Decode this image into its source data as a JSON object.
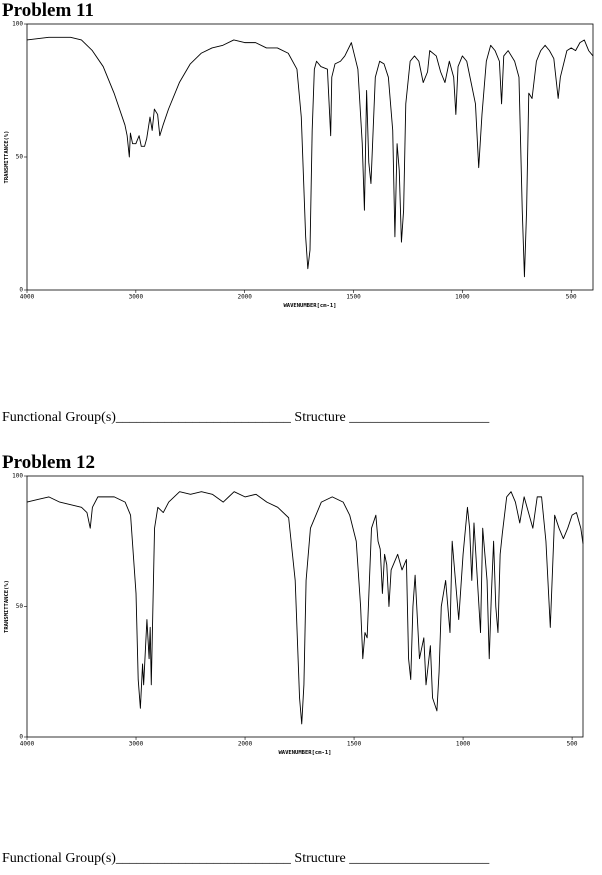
{
  "problems": [
    {
      "title": "Problem 11",
      "chart": {
        "type": "line",
        "xlabel": "WAVENUMBER[cm-1]",
        "ylabel": "TRANSMITTANCE(%)",
        "xlim": [
          4000,
          400
        ],
        "x_scale_change": 2000,
        "ylim": [
          0,
          100
        ],
        "xticks": [
          4000,
          3000,
          2000,
          1500,
          1000,
          500
        ],
        "yticks": [
          0,
          50,
          100
        ],
        "color": "#000000",
        "x": [
          4000,
          3800,
          3600,
          3500,
          3400,
          3300,
          3200,
          3100,
          3080,
          3060,
          3050,
          3030,
          3000,
          2970,
          2950,
          2920,
          2900,
          2870,
          2850,
          2830,
          2800,
          2780,
          2750,
          2700,
          2600,
          2500,
          2400,
          2300,
          2200,
          2100,
          2000,
          1950,
          1900,
          1850,
          1800,
          1760,
          1740,
          1720,
          1710,
          1700,
          1690,
          1680,
          1670,
          1650,
          1620,
          1605,
          1600,
          1585,
          1560,
          1540,
          1510,
          1495,
          1480,
          1460,
          1450,
          1440,
          1430,
          1420,
          1400,
          1380,
          1360,
          1340,
          1320,
          1310,
          1300,
          1290,
          1280,
          1270,
          1260,
          1240,
          1220,
          1200,
          1180,
          1160,
          1150,
          1120,
          1100,
          1080,
          1060,
          1040,
          1030,
          1020,
          1000,
          980,
          960,
          940,
          925,
          910,
          890,
          870,
          850,
          830,
          820,
          810,
          790,
          760,
          740,
          725,
          715,
          705,
          695,
          680,
          660,
          640,
          620,
          600,
          580,
          560,
          550,
          520,
          500,
          480,
          460,
          440,
          420,
          400
        ],
        "values": [
          94,
          95,
          95,
          94,
          90,
          84,
          74,
          62,
          58,
          50,
          59,
          55,
          55,
          58,
          54,
          54,
          57,
          65,
          60,
          68,
          66,
          58,
          62,
          68,
          78,
          85,
          89,
          91,
          92,
          94,
          93,
          93,
          91,
          91,
          89,
          83,
          65,
          20,
          8,
          15,
          60,
          83,
          86,
          84,
          83,
          58,
          80,
          85,
          86,
          88,
          93,
          88,
          83,
          55,
          30,
          75,
          48,
          40,
          80,
          86,
          85,
          80,
          60,
          20,
          55,
          45,
          18,
          30,
          70,
          86,
          88,
          86,
          78,
          82,
          90,
          88,
          82,
          78,
          86,
          80,
          66,
          84,
          88,
          86,
          78,
          70,
          46,
          66,
          86,
          92,
          90,
          86,
          70,
          88,
          90,
          86,
          80,
          30,
          5,
          30,
          74,
          72,
          86,
          90,
          92,
          90,
          87,
          72,
          80,
          90,
          91,
          90,
          93,
          94,
          90,
          88
        ]
      },
      "answer": "Functional Group(s)_________________________ Structure ____________________"
    },
    {
      "title": "Problem 12",
      "chart": {
        "type": "line",
        "xlabel": "WAVENUMBER[cm-1]",
        "ylabel": "TRANSMITTANCE(%)",
        "xlim": [
          4000,
          450
        ],
        "x_scale_change": 2000,
        "ylim": [
          0,
          100
        ],
        "xticks": [
          4000,
          3000,
          2000,
          1500,
          1000,
          500
        ],
        "yticks": [
          0,
          50,
          100
        ],
        "color": "#000000",
        "x": [
          4000,
          3900,
          3800,
          3700,
          3600,
          3500,
          3450,
          3420,
          3400,
          3350,
          3200,
          3100,
          3050,
          3000,
          2980,
          2960,
          2940,
          2930,
          2900,
          2880,
          2870,
          2860,
          2850,
          2830,
          2800,
          2750,
          2700,
          2600,
          2500,
          2400,
          2300,
          2200,
          2150,
          2100,
          2000,
          1950,
          1900,
          1850,
          1800,
          1770,
          1750,
          1740,
          1730,
          1720,
          1700,
          1650,
          1600,
          1550,
          1520,
          1490,
          1470,
          1460,
          1450,
          1440,
          1420,
          1400,
          1390,
          1380,
          1370,
          1360,
          1350,
          1340,
          1330,
          1300,
          1280,
          1260,
          1250,
          1240,
          1230,
          1220,
          1200,
          1180,
          1170,
          1150,
          1140,
          1120,
          1110,
          1100,
          1080,
          1060,
          1050,
          1040,
          1020,
          1000,
          980,
          970,
          960,
          950,
          940,
          920,
          910,
          890,
          880,
          870,
          860,
          850,
          840,
          830,
          820,
          800,
          780,
          760,
          740,
          720,
          700,
          680,
          660,
          640,
          620,
          600,
          580,
          560,
          540,
          520,
          500,
          480,
          460,
          450
        ],
        "values": [
          90,
          91,
          92,
          90,
          89,
          88,
          86,
          80,
          88,
          92,
          92,
          90,
          85,
          55,
          22,
          11,
          28,
          20,
          45,
          30,
          42,
          20,
          40,
          80,
          88,
          86,
          90,
          94,
          93,
          94,
          93,
          90,
          92,
          94,
          92,
          93,
          90,
          88,
          84,
          60,
          15,
          5,
          20,
          60,
          80,
          90,
          92,
          90,
          85,
          75,
          50,
          30,
          40,
          38,
          80,
          85,
          75,
          72,
          55,
          70,
          66,
          50,
          64,
          70,
          64,
          68,
          30,
          22,
          50,
          62,
          30,
          38,
          20,
          35,
          15,
          10,
          25,
          50,
          60,
          40,
          75,
          65,
          45,
          70,
          88,
          80,
          60,
          82,
          68,
          40,
          80,
          60,
          30,
          55,
          75,
          50,
          40,
          70,
          78,
          92,
          94,
          90,
          82,
          92,
          86,
          80,
          92,
          92,
          75,
          42,
          85,
          80,
          76,
          80,
          85,
          86,
          80,
          74
        ]
      },
      "answer": "Functional Group(s)_________________________ Structure ____________________"
    }
  ]
}
